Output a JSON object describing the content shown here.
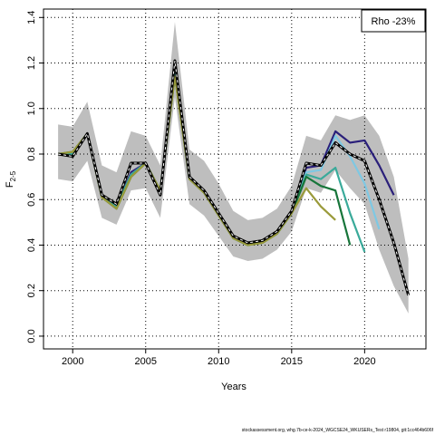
{
  "chart_data": {
    "type": "line",
    "xlabel": "Years",
    "ylabel": "F",
    "ylabel_sub": "2-5",
    "annotation": "Rho -23%",
    "footer": "stockassessment.org, whg.7b-ce-k-2024_WGCSE24_WKUSERs_Test r19804, git:1cc464b606f",
    "x": [
      1999,
      2000,
      2001,
      2002,
      2003,
      2004,
      2005,
      2006,
      2007,
      2008,
      2009,
      2010,
      2011,
      2012,
      2013,
      2014,
      2015,
      2016,
      2017,
      2018,
      2019,
      2020,
      2021,
      2022,
      2023
    ],
    "xlim": [
      1998.0,
      2024.2
    ],
    "xticks": [
      2000,
      2005,
      2010,
      2015,
      2020
    ],
    "ylim": [
      -0.056,
      1.437
    ],
    "yticks": [
      {
        "value": 0,
        "label": "0.0"
      },
      0.2,
      0.4,
      0.6,
      0.8,
      {
        "value": 1,
        "label": "1.0"
      },
      1.2,
      1.4
    ],
    "grid": true,
    "band_color": "#bebebe",
    "band_upper": [
      0.93,
      0.92,
      1.03,
      0.75,
      0.72,
      0.9,
      0.88,
      0.75,
      1.38,
      0.82,
      0.77,
      0.67,
      0.55,
      0.51,
      0.52,
      0.56,
      0.66,
      0.88,
      0.86,
      0.97,
      0.95,
      0.97,
      0.88,
      0.7,
      0.34
    ],
    "band_lower": [
      0.69,
      0.68,
      0.77,
      0.52,
      0.49,
      0.64,
      0.65,
      0.52,
      1.05,
      0.58,
      0.53,
      0.44,
      0.35,
      0.33,
      0.34,
      0.38,
      0.46,
      0.65,
      0.63,
      0.73,
      0.65,
      0.58,
      0.38,
      0.22,
      0.1
    ],
    "series": [
      {
        "color": "#2a1f7a",
        "values": [
          0.8,
          0.8,
          0.89,
          0.62,
          0.57,
          0.72,
          0.76,
          0.63,
          1.17,
          0.7,
          0.64,
          0.54,
          0.44,
          0.41,
          0.42,
          0.46,
          0.55,
          0.74,
          0.75,
          0.9,
          0.85,
          0.86,
          0.75,
          0.62,
          null
        ]
      },
      {
        "color": "#7ec8e3",
        "values": [
          0.8,
          0.8,
          0.89,
          0.62,
          0.57,
          0.71,
          0.76,
          0.63,
          1.16,
          0.7,
          0.64,
          0.54,
          0.44,
          0.41,
          0.42,
          0.46,
          0.55,
          0.72,
          0.73,
          0.88,
          0.79,
          0.67,
          0.47,
          null,
          null
        ]
      },
      {
        "color": "#3aaa9a",
        "values": [
          0.8,
          0.8,
          0.89,
          0.62,
          0.57,
          0.71,
          0.76,
          0.64,
          1.15,
          0.7,
          0.63,
          0.54,
          0.43,
          0.4,
          0.42,
          0.45,
          0.54,
          0.71,
          0.69,
          0.74,
          0.54,
          0.37,
          null,
          null,
          null
        ]
      },
      {
        "color": "#17753a",
        "values": [
          0.8,
          0.81,
          0.89,
          0.61,
          0.56,
          0.7,
          0.76,
          0.64,
          1.14,
          0.69,
          0.63,
          0.53,
          0.43,
          0.4,
          0.41,
          0.45,
          0.54,
          0.7,
          0.66,
          0.64,
          0.4,
          null,
          null,
          null,
          null
        ]
      },
      {
        "color": "#9a9a3a",
        "values": [
          0.8,
          0.81,
          0.89,
          0.61,
          0.56,
          0.7,
          0.76,
          0.64,
          1.14,
          0.69,
          0.63,
          0.53,
          0.43,
          0.4,
          0.41,
          0.45,
          0.54,
          0.65,
          0.57,
          0.51,
          null,
          null,
          null,
          null,
          null
        ]
      },
      {
        "color": "#000000",
        "values": [
          0.8,
          0.79,
          0.89,
          0.62,
          0.58,
          0.76,
          0.76,
          0.62,
          1.21,
          0.7,
          0.64,
          0.54,
          0.44,
          0.41,
          0.42,
          0.46,
          0.55,
          0.76,
          0.75,
          0.85,
          0.8,
          0.77,
          0.6,
          0.41,
          0.18
        ]
      }
    ]
  }
}
